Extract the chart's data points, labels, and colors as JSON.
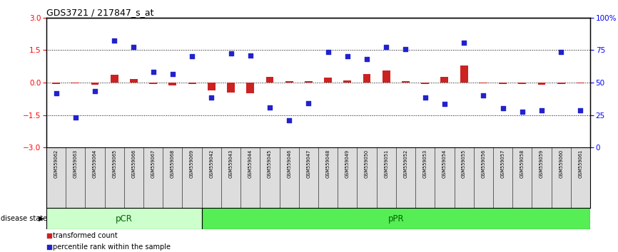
{
  "title": "GDS3721 / 217847_s_at",
  "samples": [
    "GSM559062",
    "GSM559063",
    "GSM559064",
    "GSM559065",
    "GSM559066",
    "GSM559067",
    "GSM559068",
    "GSM559069",
    "GSM559042",
    "GSM559043",
    "GSM559044",
    "GSM559045",
    "GSM559046",
    "GSM559047",
    "GSM559048",
    "GSM559049",
    "GSM559050",
    "GSM559051",
    "GSM559052",
    "GSM559053",
    "GSM559054",
    "GSM559055",
    "GSM559056",
    "GSM559057",
    "GSM559058",
    "GSM559059",
    "GSM559060",
    "GSM559061"
  ],
  "transformed_count": [
    -0.08,
    -0.05,
    -0.1,
    0.35,
    0.15,
    -0.07,
    -0.12,
    -0.08,
    -0.35,
    -0.45,
    -0.5,
    0.25,
    0.08,
    0.06,
    0.22,
    0.1,
    0.4,
    0.55,
    0.08,
    -0.06,
    0.25,
    0.8,
    -0.05,
    -0.06,
    -0.08,
    -0.1,
    -0.07,
    -0.05
  ],
  "percentile_rank": [
    -0.5,
    -1.6,
    -0.4,
    1.95,
    1.65,
    0.5,
    0.4,
    1.2,
    -0.7,
    1.35,
    1.25,
    -1.15,
    -1.75,
    -0.95,
    1.4,
    1.2,
    1.1,
    1.65,
    1.55,
    -0.7,
    -1.0,
    1.85,
    -0.6,
    -1.2,
    -1.35,
    -1.3,
    1.4,
    -1.3
  ],
  "pcr_count": 8,
  "ppr_count": 20,
  "ylim_left": [
    -3,
    3
  ],
  "yticks_left": [
    -3,
    -1.5,
    0,
    1.5,
    3
  ],
  "yticks_right_pct": [
    0,
    25,
    50,
    75,
    100
  ],
  "hlines": [
    -1.5,
    0,
    1.5
  ],
  "bar_color": "#cc2222",
  "dot_color": "#2222cc",
  "pcr_color": "#ccffcc",
  "ppr_color": "#55ee55",
  "label_color": "#006600",
  "bg_color": "#ffffff",
  "xlabel_bg": "#dddddd"
}
